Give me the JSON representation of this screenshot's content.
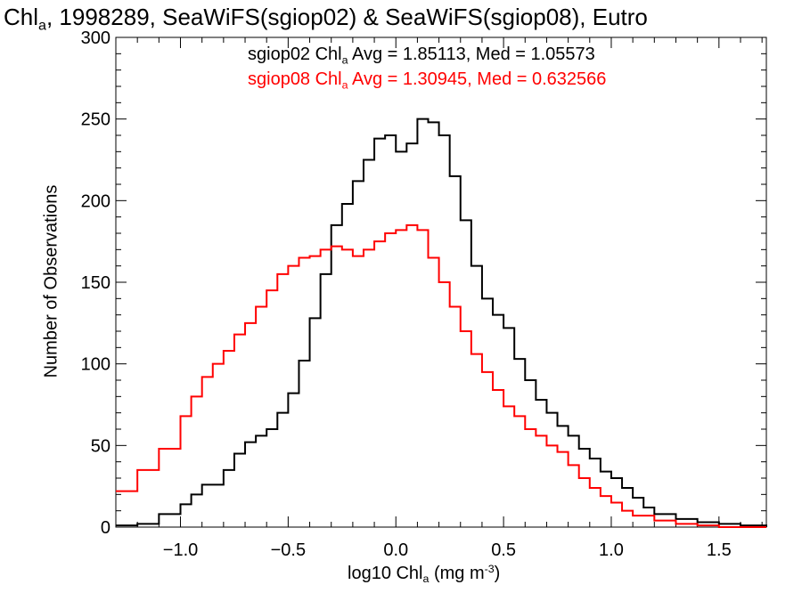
{
  "title": {
    "prefix": "Chl",
    "sub": "a",
    "rest": ", 1998289, SeaWiFS(sgiop02) & SeaWiFS(sgiop08), Eutro"
  },
  "stats": [
    {
      "prefix": "sgiop02 Chl",
      "sub": "a",
      "rest": " Avg = 1.85113, Med = 1.05573",
      "color": "#000000"
    },
    {
      "prefix": "sgiop08 Chl",
      "sub": "a",
      "rest": " Avg = 1.30945, Med = 0.632566",
      "color": "#ff0000"
    }
  ],
  "xlabel": {
    "pre": "log10 Chl",
    "sub": "a",
    "mid": " (mg m",
    "sup": "-3",
    "post": ")"
  },
  "ylabel": "Number of Observations",
  "chart_data": {
    "type": "line",
    "xlim": [
      -1.3,
      1.72
    ],
    "ylim": [
      0,
      300
    ],
    "xticks": [
      -1.0,
      -0.5,
      0.0,
      0.5,
      1.0,
      1.5
    ],
    "xtick_labels": [
      "−1.0",
      "−0.5",
      "0.0",
      "0.5",
      "1.0",
      "1.5"
    ],
    "yticks": [
      0,
      50,
      100,
      150,
      200,
      250,
      300
    ],
    "ytick_labels": [
      "0",
      "50",
      "100",
      "150",
      "200",
      "250",
      "300"
    ],
    "grid": false,
    "series": [
      {
        "color": "#000000",
        "points": [
          [
            -1.3,
            1
          ],
          [
            -1.2,
            2
          ],
          [
            -1.1,
            8
          ],
          [
            -1.0,
            14
          ],
          [
            -0.95,
            20
          ],
          [
            -0.9,
            26
          ],
          [
            -0.8,
            35
          ],
          [
            -0.75,
            45
          ],
          [
            -0.7,
            52
          ],
          [
            -0.65,
            56
          ],
          [
            -0.6,
            60
          ],
          [
            -0.55,
            70
          ],
          [
            -0.5,
            82
          ],
          [
            -0.45,
            102
          ],
          [
            -0.4,
            128
          ],
          [
            -0.35,
            155
          ],
          [
            -0.3,
            185
          ],
          [
            -0.25,
            198
          ],
          [
            -0.2,
            212
          ],
          [
            -0.15,
            225
          ],
          [
            -0.1,
            238
          ],
          [
            -0.05,
            240
          ],
          [
            0.0,
            230
          ],
          [
            0.05,
            235
          ],
          [
            0.1,
            250
          ],
          [
            0.15,
            248
          ],
          [
            0.2,
            240
          ],
          [
            0.25,
            215
          ],
          [
            0.3,
            188
          ],
          [
            0.35,
            160
          ],
          [
            0.4,
            140
          ],
          [
            0.45,
            130
          ],
          [
            0.5,
            122
          ],
          [
            0.55,
            103
          ],
          [
            0.6,
            90
          ],
          [
            0.65,
            78
          ],
          [
            0.7,
            70
          ],
          [
            0.75,
            62
          ],
          [
            0.8,
            56
          ],
          [
            0.85,
            48
          ],
          [
            0.9,
            42
          ],
          [
            0.95,
            34
          ],
          [
            1.0,
            30
          ],
          [
            1.05,
            24
          ],
          [
            1.1,
            18
          ],
          [
            1.15,
            12
          ],
          [
            1.2,
            8
          ],
          [
            1.3,
            5
          ],
          [
            1.4,
            3
          ],
          [
            1.5,
            2
          ],
          [
            1.6,
            1
          ],
          [
            1.72,
            0
          ]
        ]
      },
      {
        "color": "#ff0000",
        "points": [
          [
            -1.3,
            22
          ],
          [
            -1.2,
            35
          ],
          [
            -1.1,
            48
          ],
          [
            -1.0,
            68
          ],
          [
            -0.95,
            80
          ],
          [
            -0.9,
            92
          ],
          [
            -0.85,
            100
          ],
          [
            -0.8,
            108
          ],
          [
            -0.75,
            118
          ],
          [
            -0.7,
            125
          ],
          [
            -0.65,
            135
          ],
          [
            -0.6,
            145
          ],
          [
            -0.55,
            155
          ],
          [
            -0.5,
            160
          ],
          [
            -0.45,
            165
          ],
          [
            -0.4,
            166
          ],
          [
            -0.35,
            170
          ],
          [
            -0.3,
            172
          ],
          [
            -0.25,
            170
          ],
          [
            -0.2,
            166
          ],
          [
            -0.15,
            170
          ],
          [
            -0.1,
            175
          ],
          [
            -0.05,
            180
          ],
          [
            0.0,
            182
          ],
          [
            0.05,
            185
          ],
          [
            0.1,
            182
          ],
          [
            0.15,
            165
          ],
          [
            0.2,
            150
          ],
          [
            0.25,
            135
          ],
          [
            0.3,
            120
          ],
          [
            0.35,
            106
          ],
          [
            0.4,
            95
          ],
          [
            0.45,
            84
          ],
          [
            0.5,
            74
          ],
          [
            0.55,
            68
          ],
          [
            0.6,
            60
          ],
          [
            0.65,
            56
          ],
          [
            0.7,
            50
          ],
          [
            0.75,
            46
          ],
          [
            0.8,
            38
          ],
          [
            0.85,
            30
          ],
          [
            0.9,
            24
          ],
          [
            0.95,
            19
          ],
          [
            1.0,
            15
          ],
          [
            1.05,
            10
          ],
          [
            1.1,
            7
          ],
          [
            1.2,
            4
          ],
          [
            1.3,
            2
          ],
          [
            1.4,
            1
          ],
          [
            1.5,
            0
          ],
          [
            1.72,
            0
          ]
        ]
      }
    ]
  }
}
